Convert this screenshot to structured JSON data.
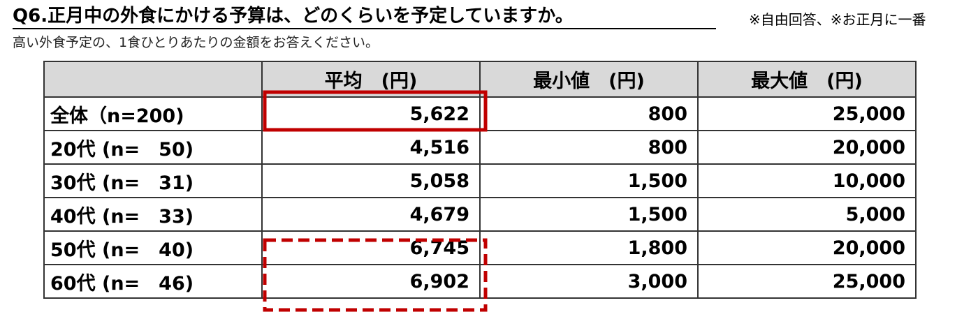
{
  "header": {
    "title": "Q6.正月中の外食にかける予算は、どのくらいを予定していますか。",
    "note": "※自由回答、※お正月に一番",
    "subtitle": "高い外食予定の、1食ひとりあたりの金額をお答えください。"
  },
  "table": {
    "columns": [
      "平均　(円)",
      "最小値　(円)",
      "最大値　(円)"
    ],
    "rows": [
      [
        "全体（n=200)",
        "5,622",
        "800",
        "25,000"
      ],
      [
        "20代 (n=　50)",
        "4,516",
        "800",
        "20,000"
      ],
      [
        "30代 (n=　31)",
        "5,058",
        "1,500",
        "10,000"
      ],
      [
        "40代 (n=　33)",
        "4,679",
        "1,500",
        "5,000"
      ],
      [
        "50代 (n=　40)",
        "6,745",
        "1,800",
        "20,000"
      ],
      [
        "60代 (n=　46)",
        "6,902",
        "3,000",
        "25,000"
      ]
    ]
  }
}
